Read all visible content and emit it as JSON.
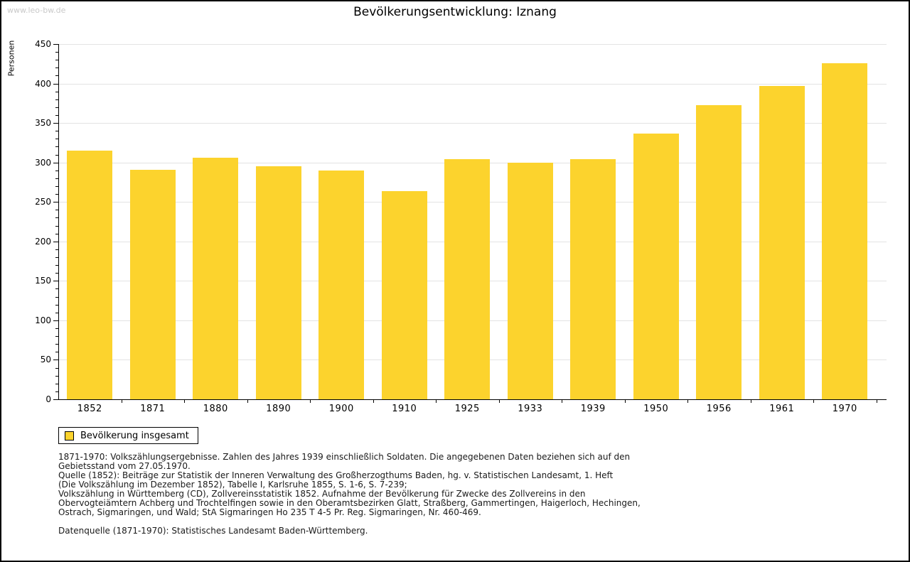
{
  "page": {
    "watermark": "www.leo-bw.de",
    "title": "Bevölkerungsentwicklung: Iznang"
  },
  "chart_data": {
    "type": "bar",
    "title": "Bevölkerungsentwicklung: Iznang",
    "xlabel": "",
    "ylabel": "Personen",
    "categories": [
      "1852",
      "1871",
      "1880",
      "1890",
      "1900",
      "1910",
      "1925",
      "1933",
      "1939",
      "1950",
      "1956",
      "1961",
      "1970"
    ],
    "series": [
      {
        "name": "Bevölkerung insgesamt",
        "values": [
          315,
          291,
          306,
          295,
          290,
          264,
          304,
          300,
          304,
          337,
          373,
          397,
          426
        ]
      }
    ],
    "ylim": [
      0,
      450
    ],
    "y_major_step": 50,
    "y_minor_step": 10,
    "grid": true,
    "legend_position": "bottom-left"
  },
  "legend": {
    "items": [
      {
        "label": "Bevölkerung insgesamt",
        "color": "#FCD32D"
      }
    ]
  },
  "colors": {
    "bar": "#FCD32D",
    "grid": "#e3e3e3",
    "axis": "#000000",
    "watermark": "#c9c9c9"
  },
  "footer": {
    "notes_lines": [
      "1871-1970: Volkszählungsergebnisse. Zahlen des Jahres 1939 einschließlich Soldaten. Die angegebenen Daten beziehen sich auf den",
      "Gebietsstand vom 27.05.1970.",
      "Quelle (1852): Beiträge zur Statistik der Inneren Verwaltung des Großherzogthums Baden, hg. v. Statistischen Landesamt, 1. Heft",
      "(Die Volkszählung im Dezember 1852), Tabelle I, Karlsruhe 1855, S. 1-6, S. 7-239;",
      "Volkszählung in Württemberg (CD), Zollvereinsstatistik 1852. Aufnahme der Bevölkerung für Zwecke des Zollvereins in den",
      "Obervogteiämtern Achberg und Trochtelfingen sowie in den Oberamtsbezirken Glatt, Straßberg, Gammertingen, Haigerloch, Hechingen,",
      "Ostrach, Sigmaringen, und Wald; StA Sigmaringen Ho 235 T 4-5 Pr. Reg. Sigmaringen, Nr. 460-469."
    ],
    "source_line": "Datenquelle (1871-1970): Statistisches Landesamt Baden-Württemberg."
  }
}
